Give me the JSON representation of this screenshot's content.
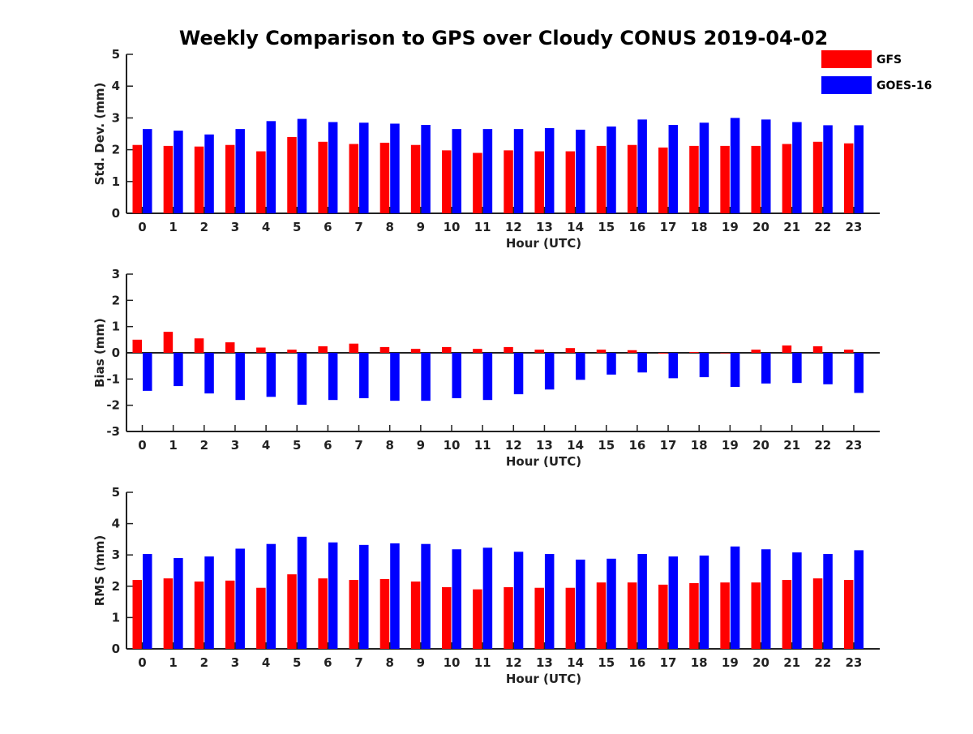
{
  "title": "Weekly Comparison to GPS over Cloudy CONUS 2019-04-02",
  "colors": {
    "gfs": "#ff0000",
    "goes": "#0000ff",
    "axis": "#222222"
  },
  "legend": [
    {
      "name": "GFS",
      "color": "#ff0000"
    },
    {
      "name": "GOES-16",
      "color": "#0000ff"
    }
  ],
  "chart_data": [
    {
      "type": "bar",
      "ylabel": "Std. Dev. (mm)",
      "xlabel": "Hour (UTC)",
      "ylim": [
        0,
        5
      ],
      "yticks": [
        0,
        1,
        2,
        3,
        4,
        5
      ],
      "categories": [
        "0",
        "1",
        "2",
        "3",
        "4",
        "5",
        "6",
        "7",
        "8",
        "9",
        "10",
        "11",
        "12",
        "13",
        "14",
        "15",
        "16",
        "17",
        "18",
        "19",
        "20",
        "21",
        "22",
        "23"
      ],
      "series": [
        {
          "name": "GFS",
          "values": [
            2.15,
            2.12,
            2.1,
            2.15,
            1.95,
            2.4,
            2.25,
            2.18,
            2.22,
            2.15,
            1.98,
            1.9,
            1.98,
            1.95,
            1.95,
            2.12,
            2.15,
            2.07,
            2.12,
            2.12,
            2.12,
            2.18,
            2.25,
            2.2
          ]
        },
        {
          "name": "GOES-16",
          "values": [
            2.65,
            2.6,
            2.48,
            2.65,
            2.9,
            2.97,
            2.87,
            2.85,
            2.82,
            2.78,
            2.65,
            2.65,
            2.65,
            2.68,
            2.63,
            2.73,
            2.95,
            2.78,
            2.85,
            3.0,
            2.95,
            2.87,
            2.77,
            2.77
          ]
        }
      ]
    },
    {
      "type": "bar",
      "ylabel": "Bias (mm)",
      "xlabel": "Hour (UTC)",
      "ylim": [
        -3,
        3
      ],
      "yticks": [
        -3,
        -2,
        -1,
        0,
        1,
        2,
        3
      ],
      "categories": [
        "0",
        "1",
        "2",
        "3",
        "4",
        "5",
        "6",
        "7",
        "8",
        "9",
        "10",
        "11",
        "12",
        "13",
        "14",
        "15",
        "16",
        "17",
        "18",
        "19",
        "20",
        "21",
        "22",
        "23"
      ],
      "series": [
        {
          "name": "GFS",
          "values": [
            0.5,
            0.8,
            0.55,
            0.4,
            0.2,
            0.12,
            0.25,
            0.35,
            0.22,
            0.15,
            0.22,
            0.15,
            0.22,
            0.12,
            0.18,
            0.12,
            0.1,
            -0.03,
            0.03,
            -0.02,
            0.12,
            0.28,
            0.25,
            0.12
          ]
        },
        {
          "name": "GOES-16",
          "values": [
            -1.45,
            -1.27,
            -1.55,
            -1.8,
            -1.68,
            -1.98,
            -1.8,
            -1.73,
            -1.83,
            -1.83,
            -1.73,
            -1.8,
            -1.58,
            -1.4,
            -1.03,
            -0.83,
            -0.75,
            -0.97,
            -0.93,
            -1.3,
            -1.17,
            -1.15,
            -1.2,
            -1.53
          ]
        }
      ]
    },
    {
      "type": "bar",
      "ylabel": "RMS (mm)",
      "xlabel": "Hour (UTC)",
      "ylim": [
        0,
        5
      ],
      "yticks": [
        0,
        1,
        2,
        3,
        4,
        5
      ],
      "categories": [
        "0",
        "1",
        "2",
        "3",
        "4",
        "5",
        "6",
        "7",
        "8",
        "9",
        "10",
        "11",
        "12",
        "13",
        "14",
        "15",
        "16",
        "17",
        "18",
        "19",
        "20",
        "21",
        "22",
        "23"
      ],
      "series": [
        {
          "name": "GFS",
          "values": [
            2.2,
            2.25,
            2.15,
            2.18,
            1.95,
            2.38,
            2.25,
            2.2,
            2.23,
            2.15,
            1.97,
            1.9,
            1.97,
            1.95,
            1.95,
            2.12,
            2.12,
            2.05,
            2.1,
            2.12,
            2.12,
            2.2,
            2.25,
            2.2
          ]
        },
        {
          "name": "GOES-16",
          "values": [
            3.03,
            2.9,
            2.95,
            3.2,
            3.35,
            3.58,
            3.4,
            3.32,
            3.37,
            3.35,
            3.18,
            3.23,
            3.1,
            3.03,
            2.85,
            2.88,
            3.03,
            2.95,
            2.98,
            3.27,
            3.18,
            3.08,
            3.03,
            3.15
          ]
        }
      ]
    }
  ]
}
